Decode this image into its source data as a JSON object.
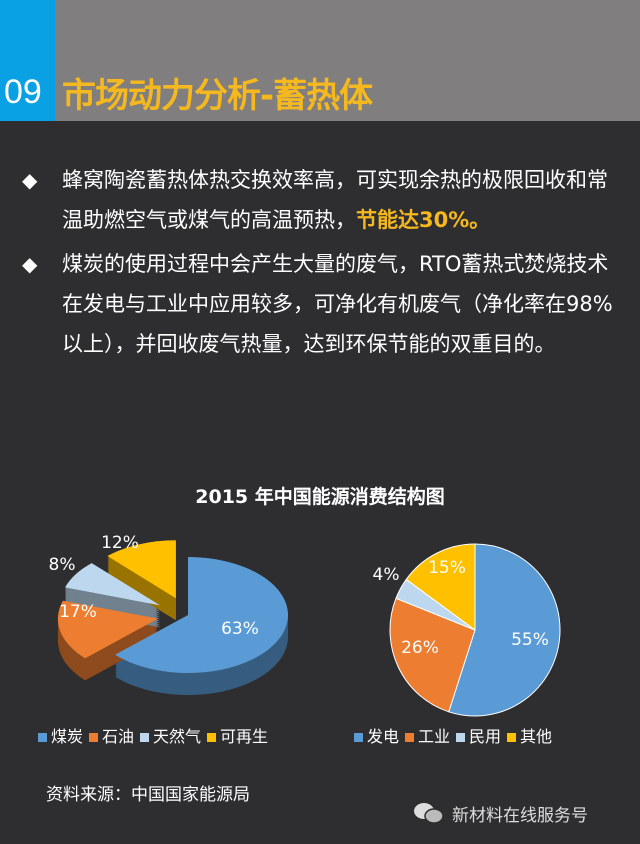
{
  "header": {
    "number": "09",
    "title": "市场动力分析-蓄热体"
  },
  "bullets": [
    {
      "text": "蜂窝陶瓷蓄热体热交换效率高，可实现余热的极限回收和常温助燃空气或煤气的高温预热，",
      "highlight": "节能达30%。"
    },
    {
      "text": "煤炭的使用过程中会产生大量的废气，RTO蓄热式焚烧技术在发电与工业中应用较多，可净化有机废气（净化率在98%以上），并回收废气热量，达到环保节能的双重目的。",
      "highlight": ""
    }
  ],
  "chart_title": "2015 年中国能源消费结构图",
  "chart_data": [
    {
      "type": "pie",
      "style": "3d-exploded",
      "categories": [
        "煤炭",
        "石油",
        "天然气",
        "可再生"
      ],
      "values": [
        63,
        17,
        8,
        12
      ],
      "labels": [
        "63%",
        "17%",
        "8%",
        "12%"
      ],
      "colors": [
        "#5b9bd5",
        "#ed7d31",
        "#bdd7ee",
        "#ffc000"
      ],
      "legend": "bottom"
    },
    {
      "type": "pie",
      "categories": [
        "发电",
        "工业",
        "民用",
        "其他"
      ],
      "values": [
        55,
        26,
        4,
        15
      ],
      "labels": [
        "55%",
        "26%",
        "4%",
        "15%"
      ],
      "colors": [
        "#5b9bd5",
        "#ed7d31",
        "#bdd7ee",
        "#ffc000"
      ],
      "legend": "bottom"
    }
  ],
  "source": "资料来源：中国国家能源局",
  "footer": {
    "account": "新材料在线服务号",
    "icon": "wechat-icon"
  }
}
